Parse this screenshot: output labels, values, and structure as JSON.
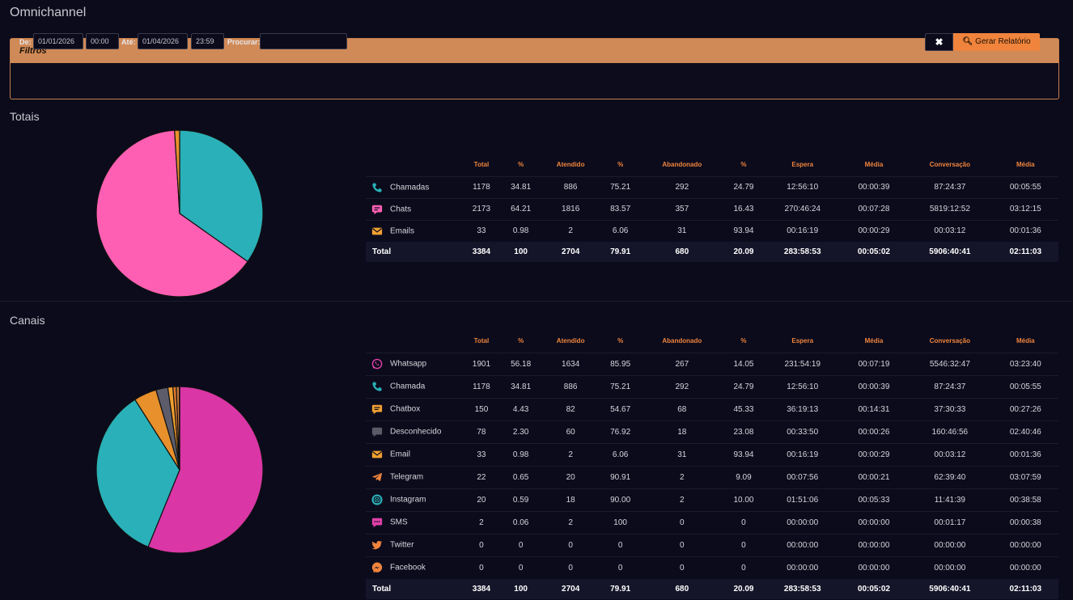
{
  "page": {
    "title": "Omnichannel"
  },
  "filters": {
    "header": "Filtros",
    "from_label": "De:",
    "from_date": "01/01/2026",
    "from_time": "00:00",
    "to_label": "Até:",
    "to_date": "01/04/2026",
    "to_time": "23:59",
    "search_label": "Procurar:",
    "search_value": "",
    "clear_label": "✖",
    "generate_label": "Gerar Relatório"
  },
  "columns": [
    "Total",
    "%",
    "Atendido",
    "%",
    "Abandonado",
    "%",
    "Espera",
    "Média",
    "Conversação",
    "Média"
  ],
  "totais": {
    "title": "Totais",
    "rows": [
      {
        "name": "Chamadas",
        "icon": "phone-icon",
        "color": "#2ab0b8",
        "cells": [
          "1178",
          "34.81",
          "886",
          "75.21",
          "292",
          "24.79",
          "12:56:10",
          "00:00:39",
          "87:24:37",
          "00:05:55"
        ]
      },
      {
        "name": "Chats",
        "icon": "chat-icon",
        "color": "#ff5fb3",
        "cells": [
          "2173",
          "64.21",
          "1816",
          "83.57",
          "357",
          "16.43",
          "270:46:24",
          "00:07:28",
          "5819:12:52",
          "03:12:15"
        ]
      },
      {
        "name": "Emails",
        "icon": "envelope-icon",
        "color": "#f0a030",
        "cells": [
          "33",
          "0.98",
          "2",
          "6.06",
          "31",
          "93.94",
          "00:16:19",
          "00:00:29",
          "00:03:12",
          "00:01:36"
        ]
      }
    ],
    "total": {
      "name": "Total",
      "cells": [
        "3384",
        "100",
        "2704",
        "79.91",
        "680",
        "20.09",
        "283:58:53",
        "00:05:02",
        "5906:40:41",
        "02:11:03"
      ]
    },
    "pie": [
      {
        "value": 1178,
        "color": "#2ab0b8"
      },
      {
        "value": 2173,
        "color": "#ff5fb3"
      },
      {
        "value": 33,
        "color": "#e8902c"
      }
    ]
  },
  "canais": {
    "title": "Canais",
    "rows": [
      {
        "name": "Whatsapp",
        "icon": "whatsapp-icon",
        "color": "#e040a8",
        "cells": [
          "1901",
          "56.18",
          "1634",
          "85.95",
          "267",
          "14.05",
          "231:54:19",
          "00:07:19",
          "5546:32:47",
          "03:23:40"
        ]
      },
      {
        "name": "Chamada",
        "icon": "phone-icon",
        "color": "#2ab0b8",
        "cells": [
          "1178",
          "34.81",
          "886",
          "75.21",
          "292",
          "24.79",
          "12:56:10",
          "00:00:39",
          "87:24:37",
          "00:05:55"
        ]
      },
      {
        "name": "Chatbox",
        "icon": "chatbox-icon",
        "color": "#f0a030",
        "cells": [
          "150",
          "4.43",
          "82",
          "54.67",
          "68",
          "45.33",
          "36:19:13",
          "00:14:31",
          "37:30:33",
          "00:27:26"
        ]
      },
      {
        "name": "Desconhecido",
        "icon": "unknown-chat-icon",
        "color": "#5a5a66",
        "cells": [
          "78",
          "2.30",
          "60",
          "76.92",
          "18",
          "23.08",
          "00:33:50",
          "00:00:26",
          "160:46:56",
          "02:40:46"
        ]
      },
      {
        "name": "Email",
        "icon": "envelope-icon",
        "color": "#f0a030",
        "cells": [
          "33",
          "0.98",
          "2",
          "6.06",
          "31",
          "93.94",
          "00:16:19",
          "00:00:29",
          "00:03:12",
          "00:01:36"
        ]
      },
      {
        "name": "Telegram",
        "icon": "telegram-icon",
        "color": "#f0843c",
        "cells": [
          "22",
          "0.65",
          "20",
          "90.91",
          "2",
          "9.09",
          "00:07:56",
          "00:00:21",
          "62:39:40",
          "03:07:59"
        ]
      },
      {
        "name": "Instagram",
        "icon": "instagram-icon",
        "color": "#2ab0b8",
        "cells": [
          "20",
          "0.59",
          "18",
          "90.00",
          "2",
          "10.00",
          "01:51:06",
          "00:05:33",
          "11:41:39",
          "00:38:58"
        ]
      },
      {
        "name": "SMS",
        "icon": "sms-icon",
        "color": "#e040a8",
        "cells": [
          "2",
          "0.06",
          "2",
          "100",
          "0",
          "0",
          "00:00:00",
          "00:00:00",
          "00:01:17",
          "00:00:38"
        ]
      },
      {
        "name": "Twitter",
        "icon": "twitter-icon",
        "color": "#f0843c",
        "cells": [
          "0",
          "0",
          "0",
          "0",
          "0",
          "0",
          "00:00:00",
          "00:00:00",
          "00:00:00",
          "00:00:00"
        ]
      },
      {
        "name": "Facebook",
        "icon": "messenger-icon",
        "color": "#f0843c",
        "cells": [
          "0",
          "0",
          "0",
          "0",
          "0",
          "0",
          "00:00:00",
          "00:00:00",
          "00:00:00",
          "00:00:00"
        ]
      }
    ],
    "total": {
      "name": "Total",
      "cells": [
        "3384",
        "100",
        "2704",
        "79.91",
        "680",
        "20.09",
        "283:58:53",
        "00:05:02",
        "5906:40:41",
        "02:11:03"
      ]
    },
    "pie": [
      {
        "value": 1901,
        "color": "#da36a6"
      },
      {
        "value": 1178,
        "color": "#2ab0b8"
      },
      {
        "value": 150,
        "color": "#e8902c"
      },
      {
        "value": 78,
        "color": "#5c5c6a"
      },
      {
        "value": 33,
        "color": "#f0a030"
      },
      {
        "value": 22,
        "color": "#e07a30"
      },
      {
        "value": 20,
        "color": "#c77a3a"
      },
      {
        "value": 2,
        "color": "#d04090"
      }
    ]
  }
}
